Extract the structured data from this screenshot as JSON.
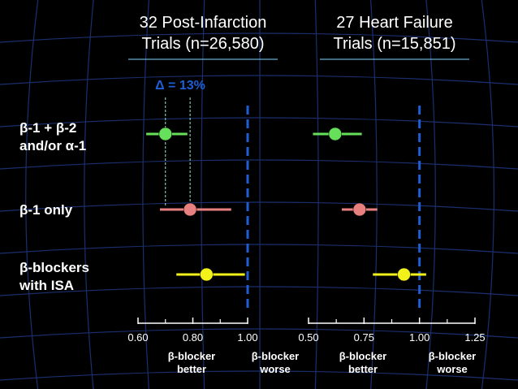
{
  "colors": {
    "background": "#000000",
    "grid": "#1a2f6e",
    "reference_line": "#1f5fd6",
    "title_underline": "#7fd6ff",
    "delta_line": "#9be7c9",
    "green": "#66e05a",
    "pink": "#e88080",
    "yellow": "#f2f21a"
  },
  "titles": {
    "left": [
      "32 Post-Infarction",
      "Trials (n=26,580)"
    ],
    "right": [
      "27 Heart Failure",
      "Trials (n=15,851)"
    ]
  },
  "delta_label": "Δ = 13%",
  "rows": [
    {
      "lines": [
        "β-1 + β-2",
        "and/or α-1"
      ]
    },
    {
      "lines": [
        "β-1 only"
      ]
    },
    {
      "lines": [
        "β-blockers",
        "with ISA"
      ]
    }
  ],
  "direction_labels": {
    "left": {
      "better": [
        "β-blocker",
        "better"
      ],
      "worse": [
        "β-blocker",
        "worse"
      ]
    },
    "right": {
      "better": [
        "β-blocker",
        "better"
      ],
      "worse": [
        "β-blocker",
        "worse"
      ]
    }
  },
  "chart_data": [
    {
      "type": "scatter",
      "title": "32 Post-Infarction Trials (n=26,580)",
      "xlim": [
        0.6,
        1.0
      ],
      "reference_value": 1.0,
      "ticks": [
        0.6,
        0.8,
        1.0
      ],
      "tick_labels": [
        "0.60",
        "0.80",
        "1.00"
      ],
      "series": [
        {
          "category": "β-1 + β-2 and/or α-1",
          "estimate": 0.7,
          "ci": [
            0.63,
            0.78
          ],
          "color": "#66e05a"
        },
        {
          "category": "β-1 only",
          "estimate": 0.79,
          "ci": [
            0.68,
            0.94
          ],
          "color": "#e88080"
        },
        {
          "category": "β-blockers with ISA",
          "estimate": 0.85,
          "ci": [
            0.74,
            0.99
          ],
          "color": "#f2f21a"
        }
      ],
      "annotation": {
        "text": "Δ = 13%",
        "from": 0.7,
        "to": 0.79
      }
    },
    {
      "type": "scatter",
      "title": "27 Heart Failure Trials (n=15,851)",
      "xlim": [
        0.5,
        1.25
      ],
      "reference_value": 1.0,
      "ticks": [
        0.5,
        0.75,
        1.0,
        1.25
      ],
      "tick_labels": [
        "0.50",
        "0.75",
        "1.00",
        "1.25"
      ],
      "series": [
        {
          "category": "β-1 + β-2 and/or α-1",
          "estimate": 0.62,
          "ci": [
            0.52,
            0.74
          ],
          "color": "#66e05a"
        },
        {
          "category": "β-1 only",
          "estimate": 0.73,
          "ci": [
            0.65,
            0.81
          ],
          "color": "#e88080"
        },
        {
          "category": "β-blockers with ISA",
          "estimate": 0.93,
          "ci": [
            0.79,
            1.03
          ],
          "color": "#f2f21a"
        }
      ]
    }
  ]
}
